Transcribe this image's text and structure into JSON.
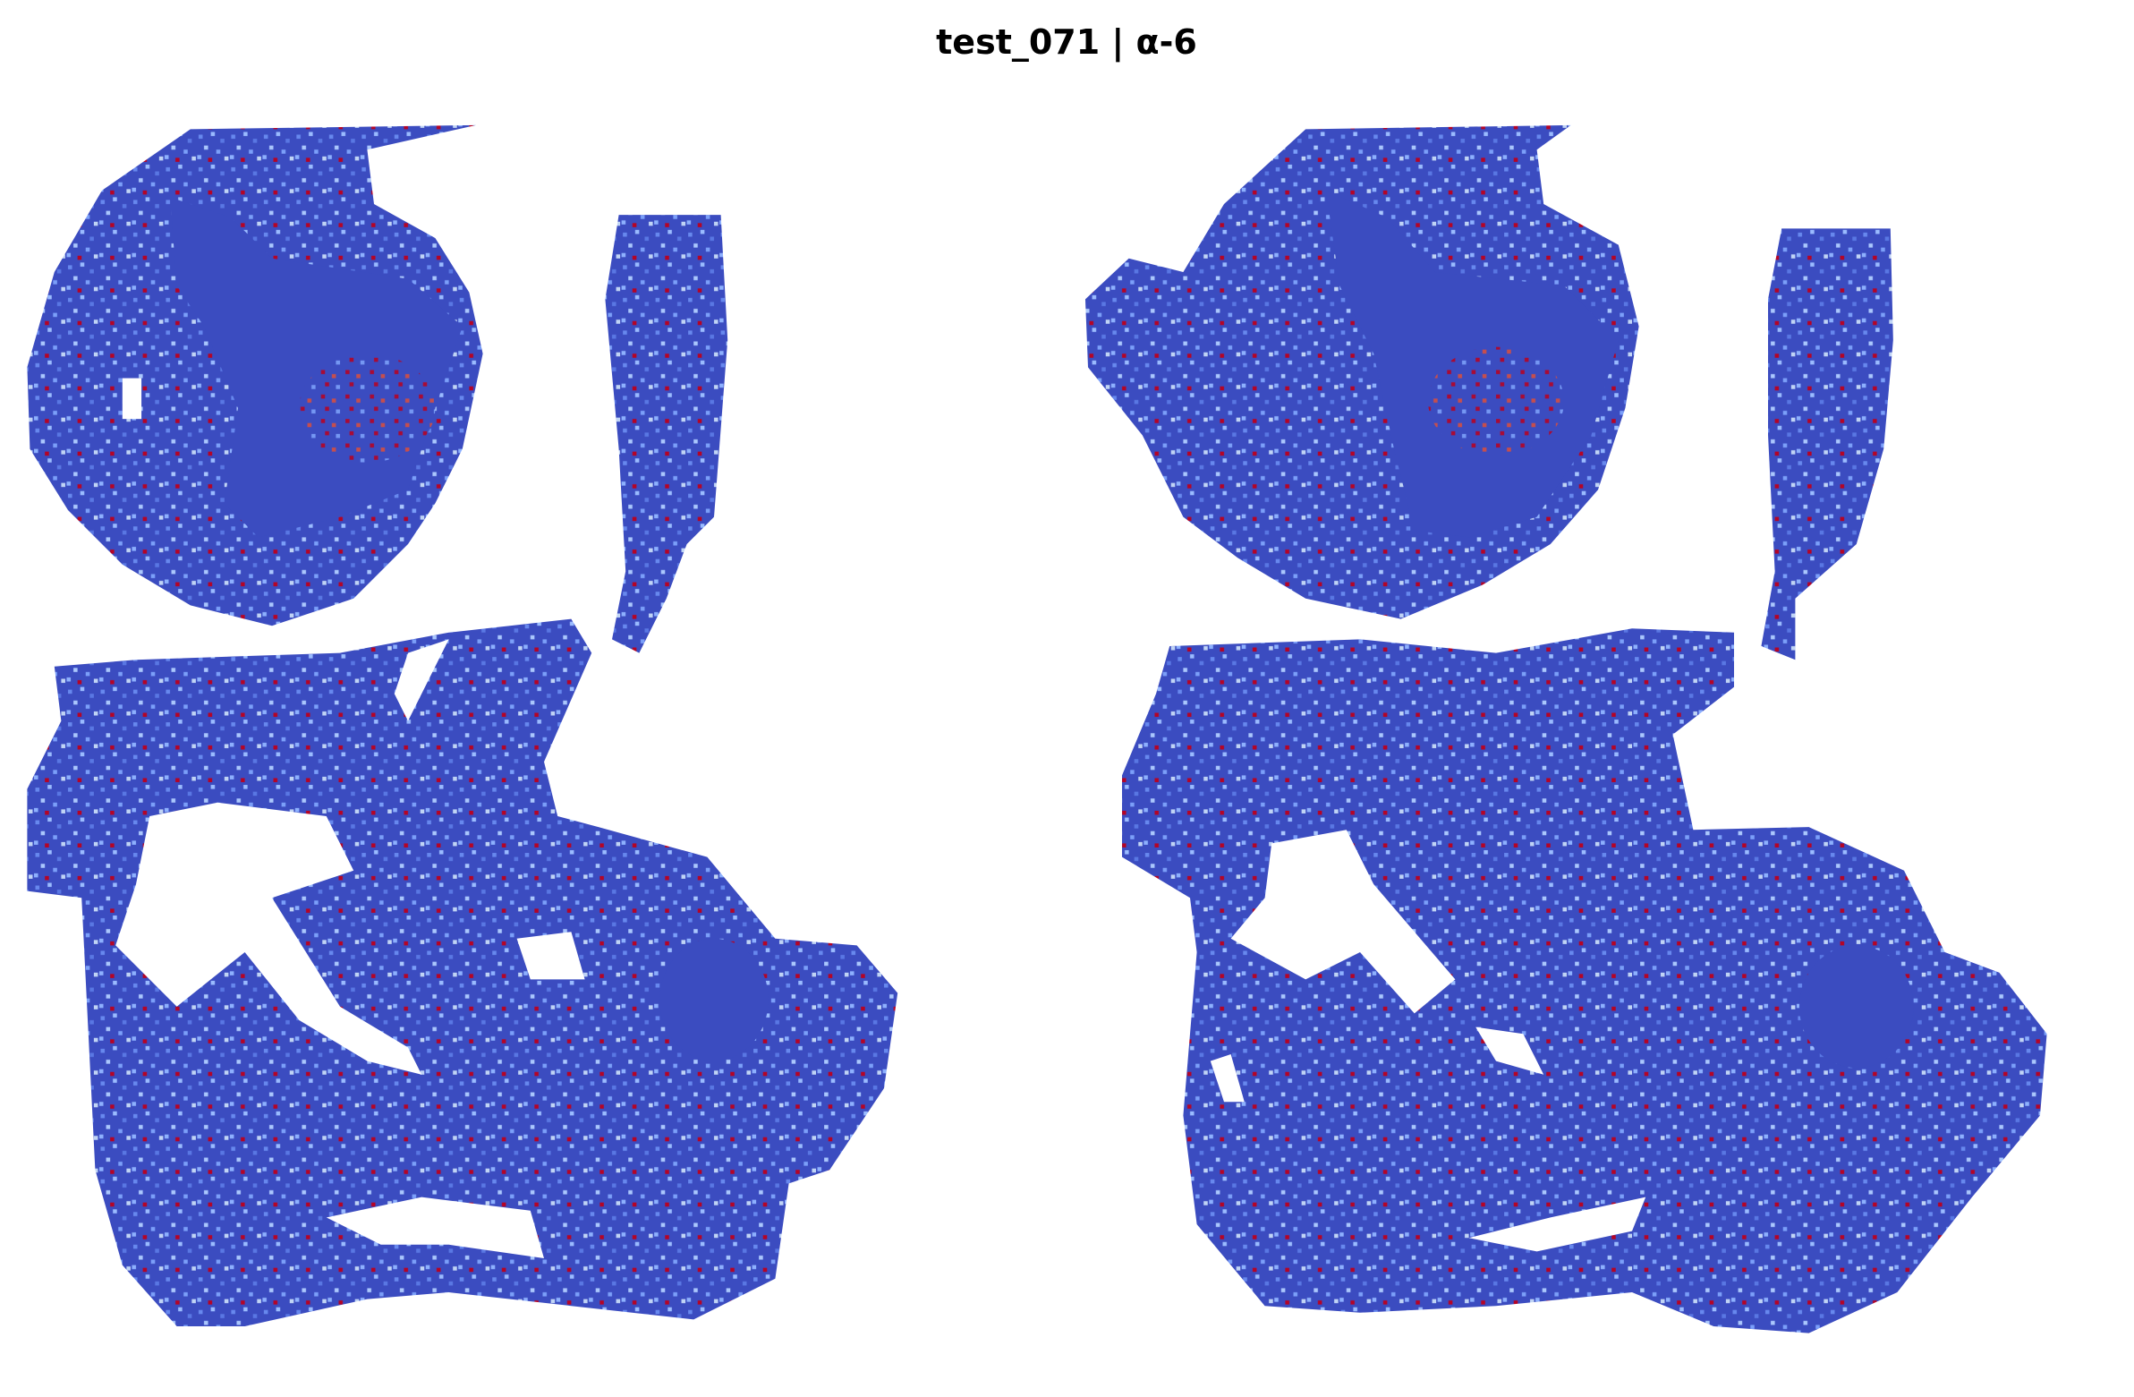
{
  "header": {
    "title": "test_071 | α-6"
  }
}
